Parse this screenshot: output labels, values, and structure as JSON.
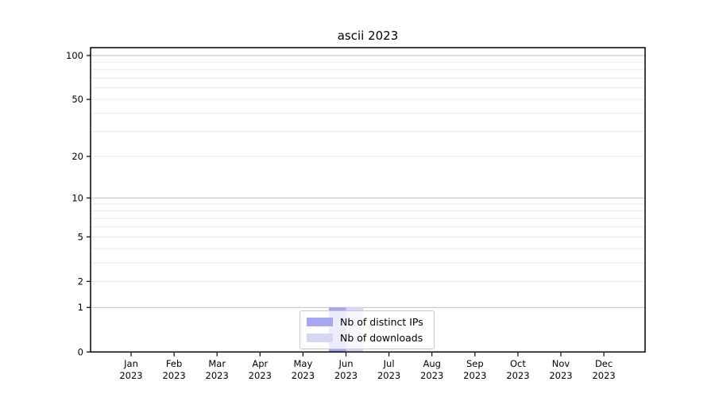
{
  "chart_data": {
    "type": "bar",
    "title": "ascii 2023",
    "year": "2023",
    "months": [
      "Jan",
      "Feb",
      "Mar",
      "Apr",
      "May",
      "Jun",
      "Jul",
      "Aug",
      "Sep",
      "Oct",
      "Nov",
      "Dec"
    ],
    "categories": [
      "Jan 2023",
      "Feb 2023",
      "Mar 2023",
      "Apr 2023",
      "May 2023",
      "Jun 2023",
      "Jul 2023",
      "Aug 2023",
      "Sep 2023",
      "Oct 2023",
      "Nov 2023",
      "Dec 2023"
    ],
    "series": [
      {
        "key": "distinct-ips",
        "name": "Nb of distinct IPs",
        "color": "#a7a7f0",
        "values": [
          0,
          0,
          0,
          0,
          0,
          1,
          0,
          0,
          0,
          0,
          0,
          0
        ]
      },
      {
        "key": "downloads",
        "name": "Nb of downloads",
        "color": "#d7d7f5",
        "values": [
          0,
          0,
          0,
          0,
          0,
          1,
          0,
          0,
          0,
          0,
          0,
          0
        ]
      }
    ],
    "y_ticks": [
      100,
      50,
      20,
      10,
      5,
      2,
      1,
      0
    ],
    "yscale": "log1p",
    "ylim": [
      0,
      113
    ],
    "grid": "both",
    "legend_position": "lower center",
    "colors": {
      "major_gridline": "#c0c0c0",
      "minor_gridline": "#e8e8e8",
      "axis": "#000000"
    }
  }
}
